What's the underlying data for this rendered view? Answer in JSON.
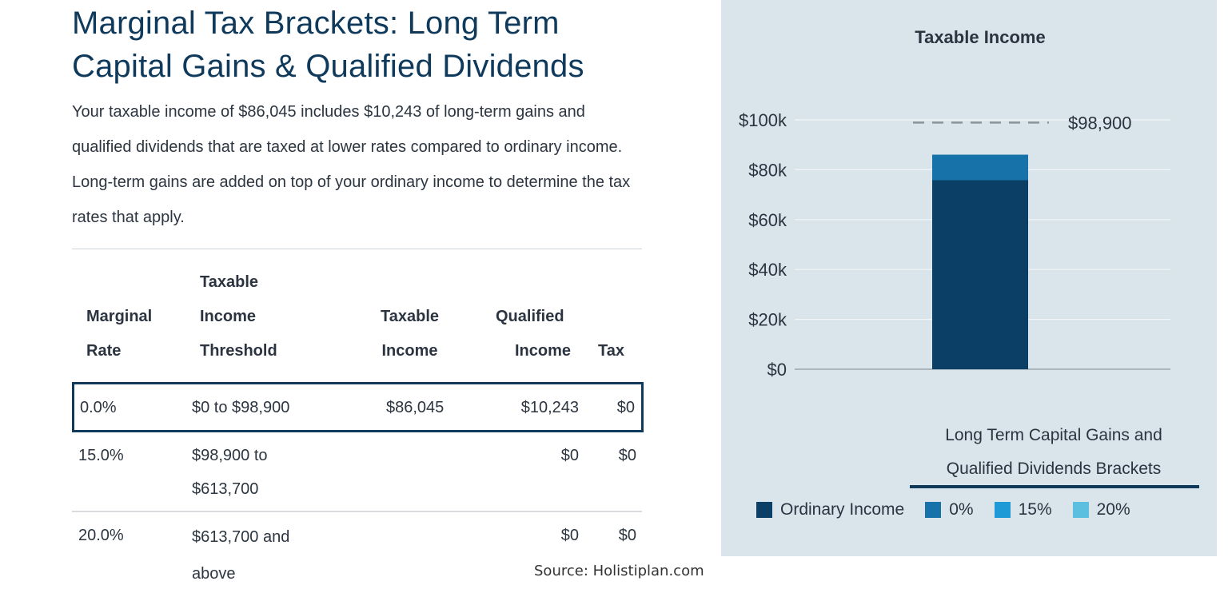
{
  "title": "Marginal Tax Brackets: Long Term Capital Gains & Qualified Dividends",
  "description": "Your taxable income of $86,045 includes $10,243 of long-term gains and qualified dividends that are taxed at lower rates compared to ordinary income. Long-term gains are added on top of your ordinary income to determine the tax rates that apply.",
  "table": {
    "headers": {
      "rate": [
        "Marginal",
        "Rate"
      ],
      "threshold": [
        "Taxable",
        "Income",
        "Threshold"
      ],
      "taxable": [
        "Taxable",
        "Income"
      ],
      "qualified": [
        "Qualified",
        "Income"
      ],
      "tax": [
        "Tax"
      ]
    },
    "rows": [
      {
        "rate": "0.0%",
        "threshold": [
          "$0 to $98,900"
        ],
        "taxable": "$86,045",
        "qualified": "$10,243",
        "tax": "$0"
      },
      {
        "rate": "15.0%",
        "threshold": [
          "$98,900 to",
          "$613,700"
        ],
        "taxable": "",
        "qualified": "$0",
        "tax": "$0"
      },
      {
        "rate": "20.0%",
        "threshold": [
          "$613,700 and",
          "above"
        ],
        "taxable": "",
        "qualified": "$0",
        "tax": "$0"
      }
    ]
  },
  "source": "Source: Holistiplan.com",
  "chart_data": {
    "type": "bar",
    "title": "Taxable Income",
    "categories": [
      ""
    ],
    "series": [
      {
        "name": "Ordinary Income",
        "values": [
          75802
        ]
      },
      {
        "name": "0%",
        "values": [
          10243
        ]
      },
      {
        "name": "15%",
        "values": [
          0
        ]
      },
      {
        "name": "20%",
        "values": [
          0
        ]
      }
    ],
    "stacked": true,
    "ylim": [
      0,
      100000
    ],
    "yticks": [
      0,
      20000,
      40000,
      60000,
      80000,
      100000
    ],
    "ytick_labels": [
      "$0",
      "$20k",
      "$40k",
      "$60k",
      "$80k",
      "$100k"
    ],
    "threshold": {
      "value": 98900,
      "label": "$98,900"
    },
    "legend_title": [
      "Long Term Capital Gains and",
      "Qualified Dividends Brackets"
    ],
    "legend_position": "bottom",
    "grid": true,
    "colors": {
      "Ordinary Income": "#0b3f66",
      "0%": "#1672a8",
      "15%": "#1e9ad6",
      "20%": "#5bbfe0"
    }
  }
}
